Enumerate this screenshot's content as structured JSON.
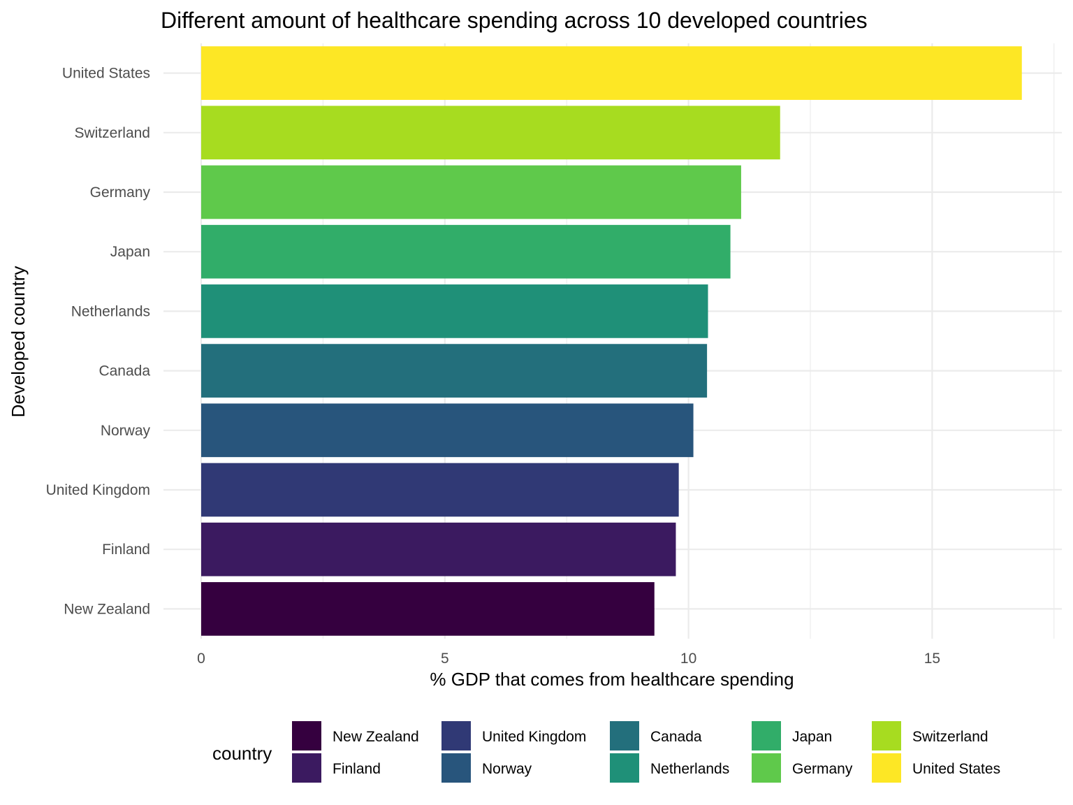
{
  "chart_data": {
    "type": "bar",
    "orientation": "horizontal",
    "title": "Different amount of healthcare spending across 10 developed countries",
    "xlabel": "% GDP that comes from healthcare spending",
    "ylabel": "Developed country",
    "xlim": [
      0,
      17.6
    ],
    "xticks": [
      0,
      5,
      10,
      15
    ],
    "xtick_labels": [
      "0",
      "5",
      "10",
      "15"
    ],
    "grid": true,
    "legend_position": "bottom",
    "legend_title": "country",
    "categories": [
      "New Zealand",
      "Finland",
      "United Kingdom",
      "Norway",
      "Canada",
      "Netherlands",
      "Japan",
      "Germany",
      "Switzerland",
      "United States"
    ],
    "values": [
      9.3,
      9.74,
      9.8,
      10.1,
      10.38,
      10.4,
      10.86,
      11.08,
      11.88,
      16.84
    ],
    "colors": [
      "#35003f",
      "#3b1a60",
      "#303975",
      "#28557c",
      "#236f7c",
      "#1f9078",
      "#31ad69",
      "#5fc94b",
      "#a7dc20",
      "#fde725"
    ]
  }
}
